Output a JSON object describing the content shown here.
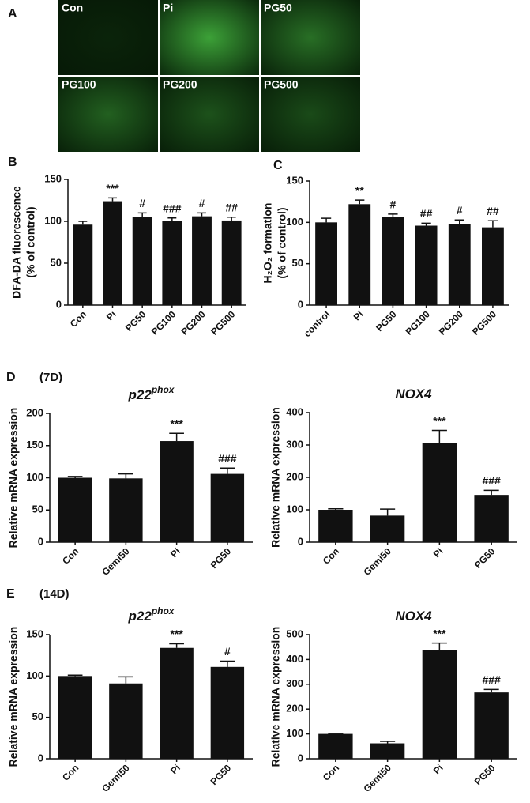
{
  "figure_panels": [
    {
      "letter": "A"
    },
    {
      "letter": "B"
    },
    {
      "letter": "C"
    },
    {
      "letter": "D",
      "note": "(7D)"
    },
    {
      "letter": "E",
      "note": "(14D)"
    }
  ],
  "images": [
    "Con",
    "Pi",
    "PG50",
    "PG100",
    "PG200",
    "PG500"
  ],
  "chart_data": [
    {
      "type": "bar",
      "ylabel": [
        "DFA-DA fluorescence",
        "(% of control)"
      ],
      "categories": [
        "Con",
        "Pi",
        "PG50",
        "PG100",
        "PG200",
        "PG500"
      ],
      "values": [
        96,
        124,
        105,
        100,
        106,
        101
      ],
      "errors": [
        4,
        4,
        5,
        4,
        4,
        4
      ],
      "annotations": [
        null,
        "***",
        "#",
        "###",
        "#",
        "##"
      ],
      "color": "#111111",
      "ylim": [
        0,
        150
      ],
      "yticks": [
        0,
        50,
        100,
        150
      ]
    },
    {
      "type": "bar",
      "ylabel": [
        "H₂O₂ formation",
        "(% of control)"
      ],
      "categories": [
        "control",
        "Pi",
        "PG50",
        "PG100",
        "PG200",
        "PG500"
      ],
      "values": [
        100,
        122,
        107,
        96,
        98,
        94
      ],
      "errors": [
        5,
        5,
        3,
        3,
        5,
        8
      ],
      "annotations": [
        null,
        "**",
        "#",
        "##",
        "#",
        "##"
      ],
      "color": "#111111",
      "ylim": [
        0,
        150
      ],
      "yticks": [
        0,
        50,
        100,
        150
      ]
    },
    {
      "type": "bar",
      "title": "p22",
      "title_superscript": "phox",
      "ylabel": [
        "Relative mRNA expression"
      ],
      "categories": [
        "Con",
        "Gemi50",
        "Pi",
        "PG50"
      ],
      "values": [
        100,
        99,
        157,
        106
      ],
      "errors": [
        2,
        7,
        12,
        9
      ],
      "annotations": [
        null,
        null,
        "***",
        "###"
      ],
      "color": "#111111",
      "ylim": [
        0,
        200
      ],
      "yticks": [
        0,
        50,
        100,
        150,
        200
      ]
    },
    {
      "type": "bar",
      "title": "NOX4",
      "ylabel": [
        "Relative mRNA expression"
      ],
      "categories": [
        "Con",
        "Gemi50",
        "Pi",
        "PG50"
      ],
      "values": [
        100,
        82,
        307,
        146
      ],
      "errors": [
        3,
        20,
        38,
        14
      ],
      "annotations": [
        null,
        null,
        "***",
        "###"
      ],
      "color": "#111111",
      "ylim": [
        0,
        400
      ],
      "yticks": [
        0,
        100,
        200,
        300,
        400
      ]
    },
    {
      "type": "bar",
      "title": "p22",
      "title_superscript": "phox",
      "ylabel": [
        "Relative mRNA expression"
      ],
      "categories": [
        "Con",
        "Gemi50",
        "Pi",
        "PG50"
      ],
      "values": [
        100,
        91,
        134,
        111
      ],
      "errors": [
        1,
        8,
        5,
        7
      ],
      "annotations": [
        null,
        null,
        "***",
        "#"
      ],
      "color": "#111111",
      "ylim": [
        0,
        150
      ],
      "yticks": [
        0,
        50,
        100,
        150
      ]
    },
    {
      "type": "bar",
      "title": "NOX4",
      "ylabel": [
        "Relative mRNA expression"
      ],
      "categories": [
        "Con",
        "Gemi50",
        "Pi",
        "PG50"
      ],
      "values": [
        100,
        62,
        438,
        267
      ],
      "errors": [
        2,
        8,
        28,
        12
      ],
      "annotations": [
        null,
        null,
        "***",
        "###"
      ],
      "color": "#111111",
      "ylim": [
        0,
        500
      ],
      "yticks": [
        0,
        100,
        200,
        300,
        400,
        500
      ]
    }
  ]
}
